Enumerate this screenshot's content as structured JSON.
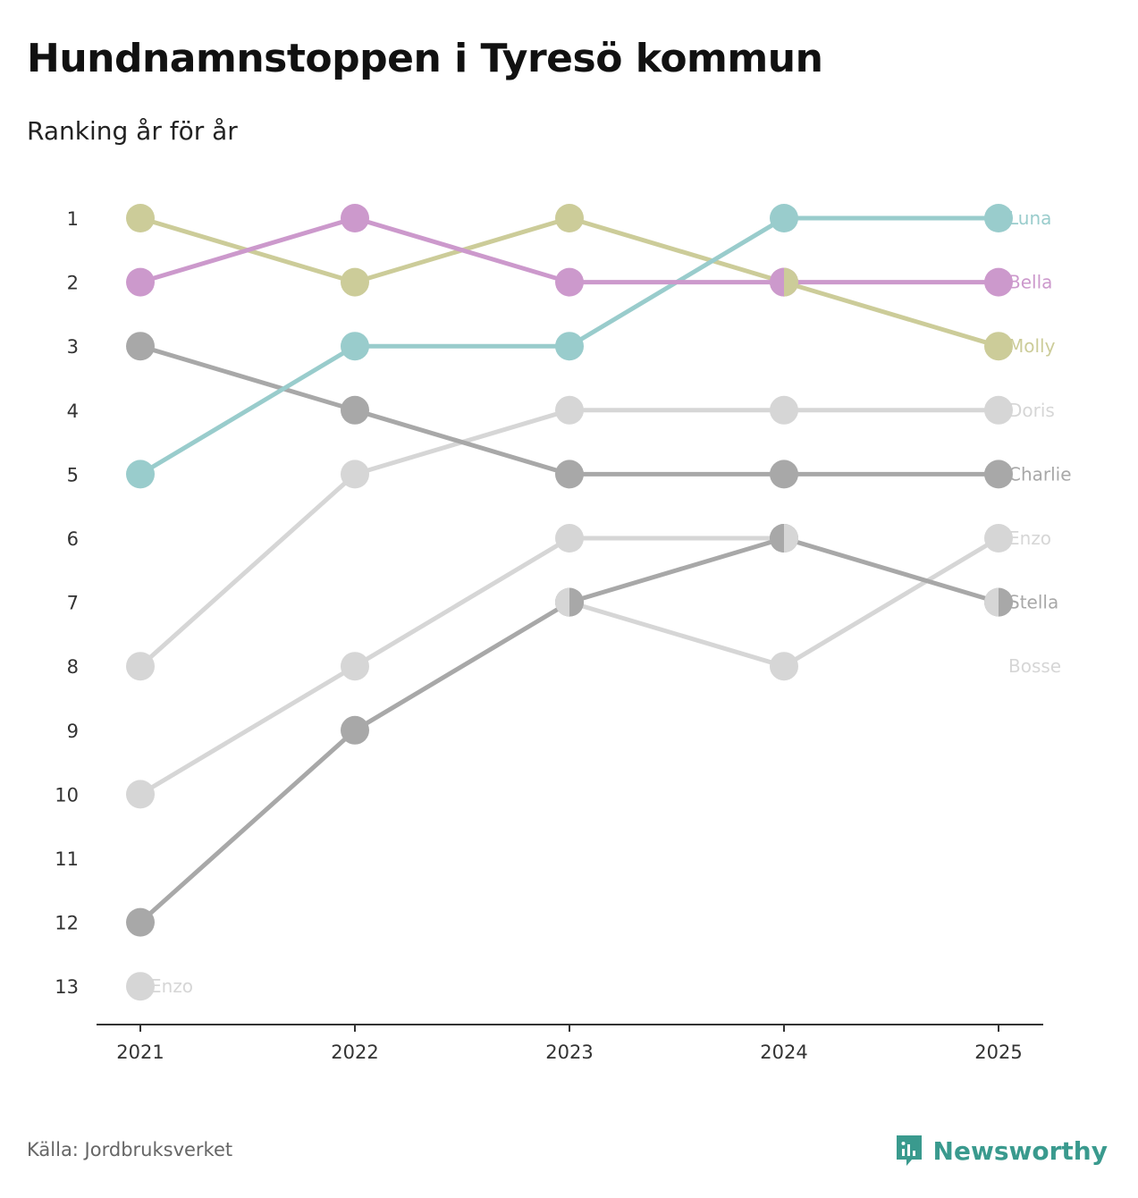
{
  "header": {
    "title": "Hundnamnstoppen i Tyresö kommun",
    "subtitle": "Ranking år för år"
  },
  "footer": {
    "source": "Källa: Jordbruksverket",
    "brand": "Newsworthy",
    "brand_color": "#3a9a8e"
  },
  "chart_data": {
    "type": "line",
    "title": "Hundnamnstoppen i Tyresö kommun",
    "subtitle": "Ranking år för år",
    "x": [
      "2021",
      "2022",
      "2023",
      "2024",
      "2025"
    ],
    "y_ticks": [
      1,
      2,
      3,
      4,
      5,
      6,
      7,
      8,
      9,
      10,
      11,
      12,
      13
    ],
    "y_reversed": true,
    "ylim": [
      1,
      13
    ],
    "series": [
      {
        "name": "Bosse",
        "color": "#d6d6d6",
        "values": [
          10,
          8,
          6,
          6,
          null
        ]
      },
      {
        "name": "Enzo",
        "color": "#d6d6d6",
        "values": [
          13,
          null,
          7,
          8,
          6
        ],
        "start_label": "Enzo"
      },
      {
        "name": "Doris",
        "color": "#d6d6d6",
        "values": [
          8,
          5,
          4,
          4,
          4
        ]
      },
      {
        "name": "Stella",
        "color": "#a8a8a8",
        "values": [
          12,
          9,
          7,
          6,
          7
        ]
      },
      {
        "name": "Charlie",
        "color": "#a8a8a8",
        "values": [
          3,
          4,
          5,
          5,
          5
        ]
      },
      {
        "name": "Molly",
        "color": "#cccc99",
        "values": [
          1,
          2,
          1,
          2,
          3
        ]
      },
      {
        "name": "Luna",
        "color": "#99cccc",
        "values": [
          5,
          3,
          3,
          1,
          1
        ]
      },
      {
        "name": "Bella",
        "color": "#cc99cc",
        "values": [
          2,
          1,
          2,
          2,
          2
        ]
      }
    ],
    "end_labels": [
      {
        "name": "Luna",
        "rank": 1,
        "color": "#99cccc"
      },
      {
        "name": "Bella",
        "rank": 2,
        "color": "#cc99cc"
      },
      {
        "name": "Molly",
        "rank": 3,
        "color": "#cccc99"
      },
      {
        "name": "Doris",
        "rank": 4,
        "color": "#d6d6d6"
      },
      {
        "name": "Charlie",
        "rank": 5,
        "color": "#a8a8a8"
      },
      {
        "name": "Enzo",
        "rank": 6,
        "color": "#d6d6d6"
      },
      {
        "name": "Stella",
        "rank": 7,
        "color": "#a8a8a8"
      },
      {
        "name": "Bosse",
        "rank": 8,
        "color": "#d6d6d6"
      }
    ],
    "split_markers": [
      {
        "year": "2023",
        "rank": 7,
        "left": "#d6d6d6",
        "right": "#a8a8a8"
      },
      {
        "year": "2024",
        "rank": 2,
        "left": "#cc99cc",
        "right": "#cccc99"
      },
      {
        "year": "2024",
        "rank": 6,
        "left": "#a8a8a8",
        "right": "#d6d6d6"
      },
      {
        "year": "2025",
        "rank": 7,
        "left": "#d6d6d6",
        "right": "#a8a8a8"
      }
    ]
  }
}
